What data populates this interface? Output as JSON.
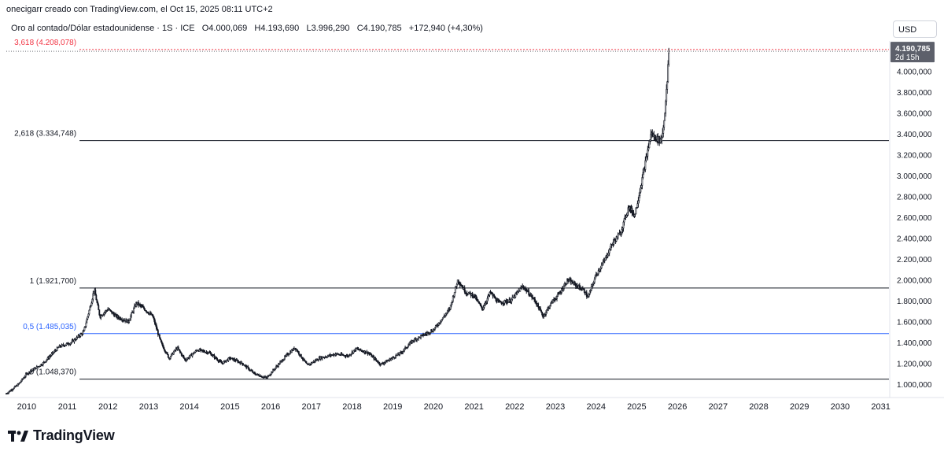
{
  "header": {
    "author_line": "onecigarr creado con TradingView.com, el Oct 15, 2025 08:11 UTC+2"
  },
  "symbol": {
    "name": "Oro al contado/Dólar estadounidense · 1S · ICE",
    "open": "O4.000,069",
    "high": "H4.193,690",
    "low": "L3.996,290",
    "close": "C4.190,785",
    "change": "+172,940 (+4,30%)"
  },
  "currency_label": "USD",
  "logo_text": "TradingView",
  "chart_data": {
    "type": "candlestick",
    "x_range": [
      2009.5,
      2031.2
    ],
    "y_range": [
      880,
      4260
    ],
    "x_ticks": [
      2010,
      2011,
      2012,
      2013,
      2014,
      2015,
      2016,
      2017,
      2018,
      2019,
      2020,
      2021,
      2022,
      2023,
      2024,
      2025,
      2026,
      2027,
      2028,
      2029,
      2030,
      2031
    ],
    "x_tick_labels": [
      "2010",
      "2011",
      "2012",
      "2013",
      "2014",
      "2015",
      "2016",
      "2017",
      "2018",
      "2019",
      "2020",
      "2021",
      "2022",
      "2023",
      "2024",
      "2025",
      "2026",
      "2027",
      "2028",
      "2029",
      "2030",
      "2031"
    ],
    "y_ticks": [
      1000,
      1200,
      1400,
      1600,
      1800,
      2000,
      2200,
      2400,
      2600,
      2800,
      3000,
      3200,
      3400,
      3600,
      3800,
      4000
    ],
    "y_tick_labels": [
      "1.000,000",
      "1.200,000",
      "1.400,000",
      "1.600,000",
      "1.800,000",
      "2.000,000",
      "2.200,000",
      "2.400,000",
      "2.600,000",
      "2.800,000",
      "3.000,000",
      "3.200,000",
      "3.400,000",
      "3.600,000",
      "3.800,000",
      "4.000,000"
    ],
    "last_price": {
      "value": 4190.785,
      "label": "4.190,785",
      "countdown": "2d 15h"
    },
    "fib_levels": [
      {
        "level": 0,
        "price": 1048.37,
        "label": "0 (1.048,370)",
        "color": "#131722"
      },
      {
        "level": 0.5,
        "price": 1485.035,
        "label": "0,5 (1.485,035)",
        "color": "#2962ff"
      },
      {
        "level": 1,
        "price": 1921.7,
        "label": "1 (1.921,700)",
        "color": "#131722"
      },
      {
        "level": 2.618,
        "price": 3334.748,
        "label": "2,618 (3.334,748)",
        "color": "#131722"
      },
      {
        "level": 3.618,
        "price": 4208.078,
        "label": "3,618 (4.208,078)",
        "color": "#f23645"
      }
    ],
    "price_path": [
      [
        2009.5,
        910
      ],
      [
        2009.8,
        1000
      ],
      [
        2010.0,
        1100
      ],
      [
        2010.4,
        1200
      ],
      [
        2010.8,
        1360
      ],
      [
        2011.1,
        1400
      ],
      [
        2011.4,
        1500
      ],
      [
        2011.6,
        1800
      ],
      [
        2011.66,
        1910
      ],
      [
        2011.8,
        1650
      ],
      [
        2012.0,
        1720
      ],
      [
        2012.2,
        1650
      ],
      [
        2012.5,
        1600
      ],
      [
        2012.7,
        1780
      ],
      [
        2012.9,
        1720
      ],
      [
        2013.1,
        1650
      ],
      [
        2013.3,
        1400
      ],
      [
        2013.5,
        1250
      ],
      [
        2013.7,
        1350
      ],
      [
        2013.9,
        1230
      ],
      [
        2014.2,
        1330
      ],
      [
        2014.5,
        1300
      ],
      [
        2014.8,
        1200
      ],
      [
        2015.0,
        1250
      ],
      [
        2015.3,
        1200
      ],
      [
        2015.6,
        1100
      ],
      [
        2015.9,
        1060
      ],
      [
        2016.1,
        1150
      ],
      [
        2016.4,
        1280
      ],
      [
        2016.6,
        1350
      ],
      [
        2016.9,
        1180
      ],
      [
        2017.2,
        1250
      ],
      [
        2017.6,
        1290
      ],
      [
        2017.9,
        1270
      ],
      [
        2018.1,
        1340
      ],
      [
        2018.4,
        1300
      ],
      [
        2018.7,
        1190
      ],
      [
        2018.9,
        1230
      ],
      [
        2019.2,
        1300
      ],
      [
        2019.5,
        1420
      ],
      [
        2019.8,
        1480
      ],
      [
        2020.0,
        1520
      ],
      [
        2020.2,
        1620
      ],
      [
        2020.4,
        1720
      ],
      [
        2020.6,
        2000
      ],
      [
        2020.8,
        1880
      ],
      [
        2021.0,
        1850
      ],
      [
        2021.2,
        1720
      ],
      [
        2021.4,
        1880
      ],
      [
        2021.6,
        1780
      ],
      [
        2021.9,
        1800
      ],
      [
        2022.2,
        1940
      ],
      [
        2022.5,
        1800
      ],
      [
        2022.7,
        1650
      ],
      [
        2022.9,
        1780
      ],
      [
        2023.1,
        1870
      ],
      [
        2023.3,
        2000
      ],
      [
        2023.5,
        1950
      ],
      [
        2023.7,
        1900
      ],
      [
        2023.8,
        1830
      ],
      [
        2024.0,
        2050
      ],
      [
        2024.2,
        2180
      ],
      [
        2024.4,
        2350
      ],
      [
        2024.6,
        2450
      ],
      [
        2024.8,
        2700
      ],
      [
        2024.95,
        2620
      ],
      [
        2025.1,
        2900
      ],
      [
        2025.25,
        3200
      ],
      [
        2025.35,
        3400
      ],
      [
        2025.5,
        3350
      ],
      [
        2025.6,
        3340
      ],
      [
        2025.65,
        3450
      ],
      [
        2025.7,
        3650
      ],
      [
        2025.75,
        3900
      ],
      [
        2025.79,
        4190
      ]
    ]
  }
}
